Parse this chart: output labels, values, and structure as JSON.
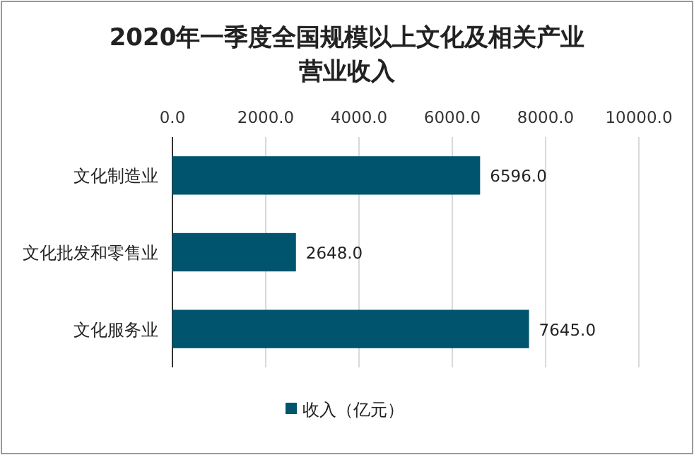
{
  "chart_data": {
    "type": "bar",
    "orientation": "horizontal",
    "title": "2020年一季度全国规模以上文化及相关产业营业收入",
    "categories": [
      "文化制造业",
      "文化批发和零售业",
      "文化服务业"
    ],
    "series": [
      {
        "name": "收入（亿元）",
        "color": "#00546e",
        "values": [
          6596.0,
          2648.0,
          7645.0
        ]
      }
    ],
    "value_labels": [
      "6596.0",
      "2648.0",
      "7645.0"
    ],
    "xlim": [
      0,
      10000
    ],
    "xticks": [
      {
        "value": 0,
        "label": "0.0"
      },
      {
        "value": 2000,
        "label": "2000.0"
      },
      {
        "value": 4000,
        "label": "4000.0"
      },
      {
        "value": 6000,
        "label": "6000.0"
      },
      {
        "value": 8000,
        "label": "8000.0"
      },
      {
        "value": 10000,
        "label": "10000.0"
      }
    ],
    "grid": "x",
    "legend": "bottom"
  }
}
